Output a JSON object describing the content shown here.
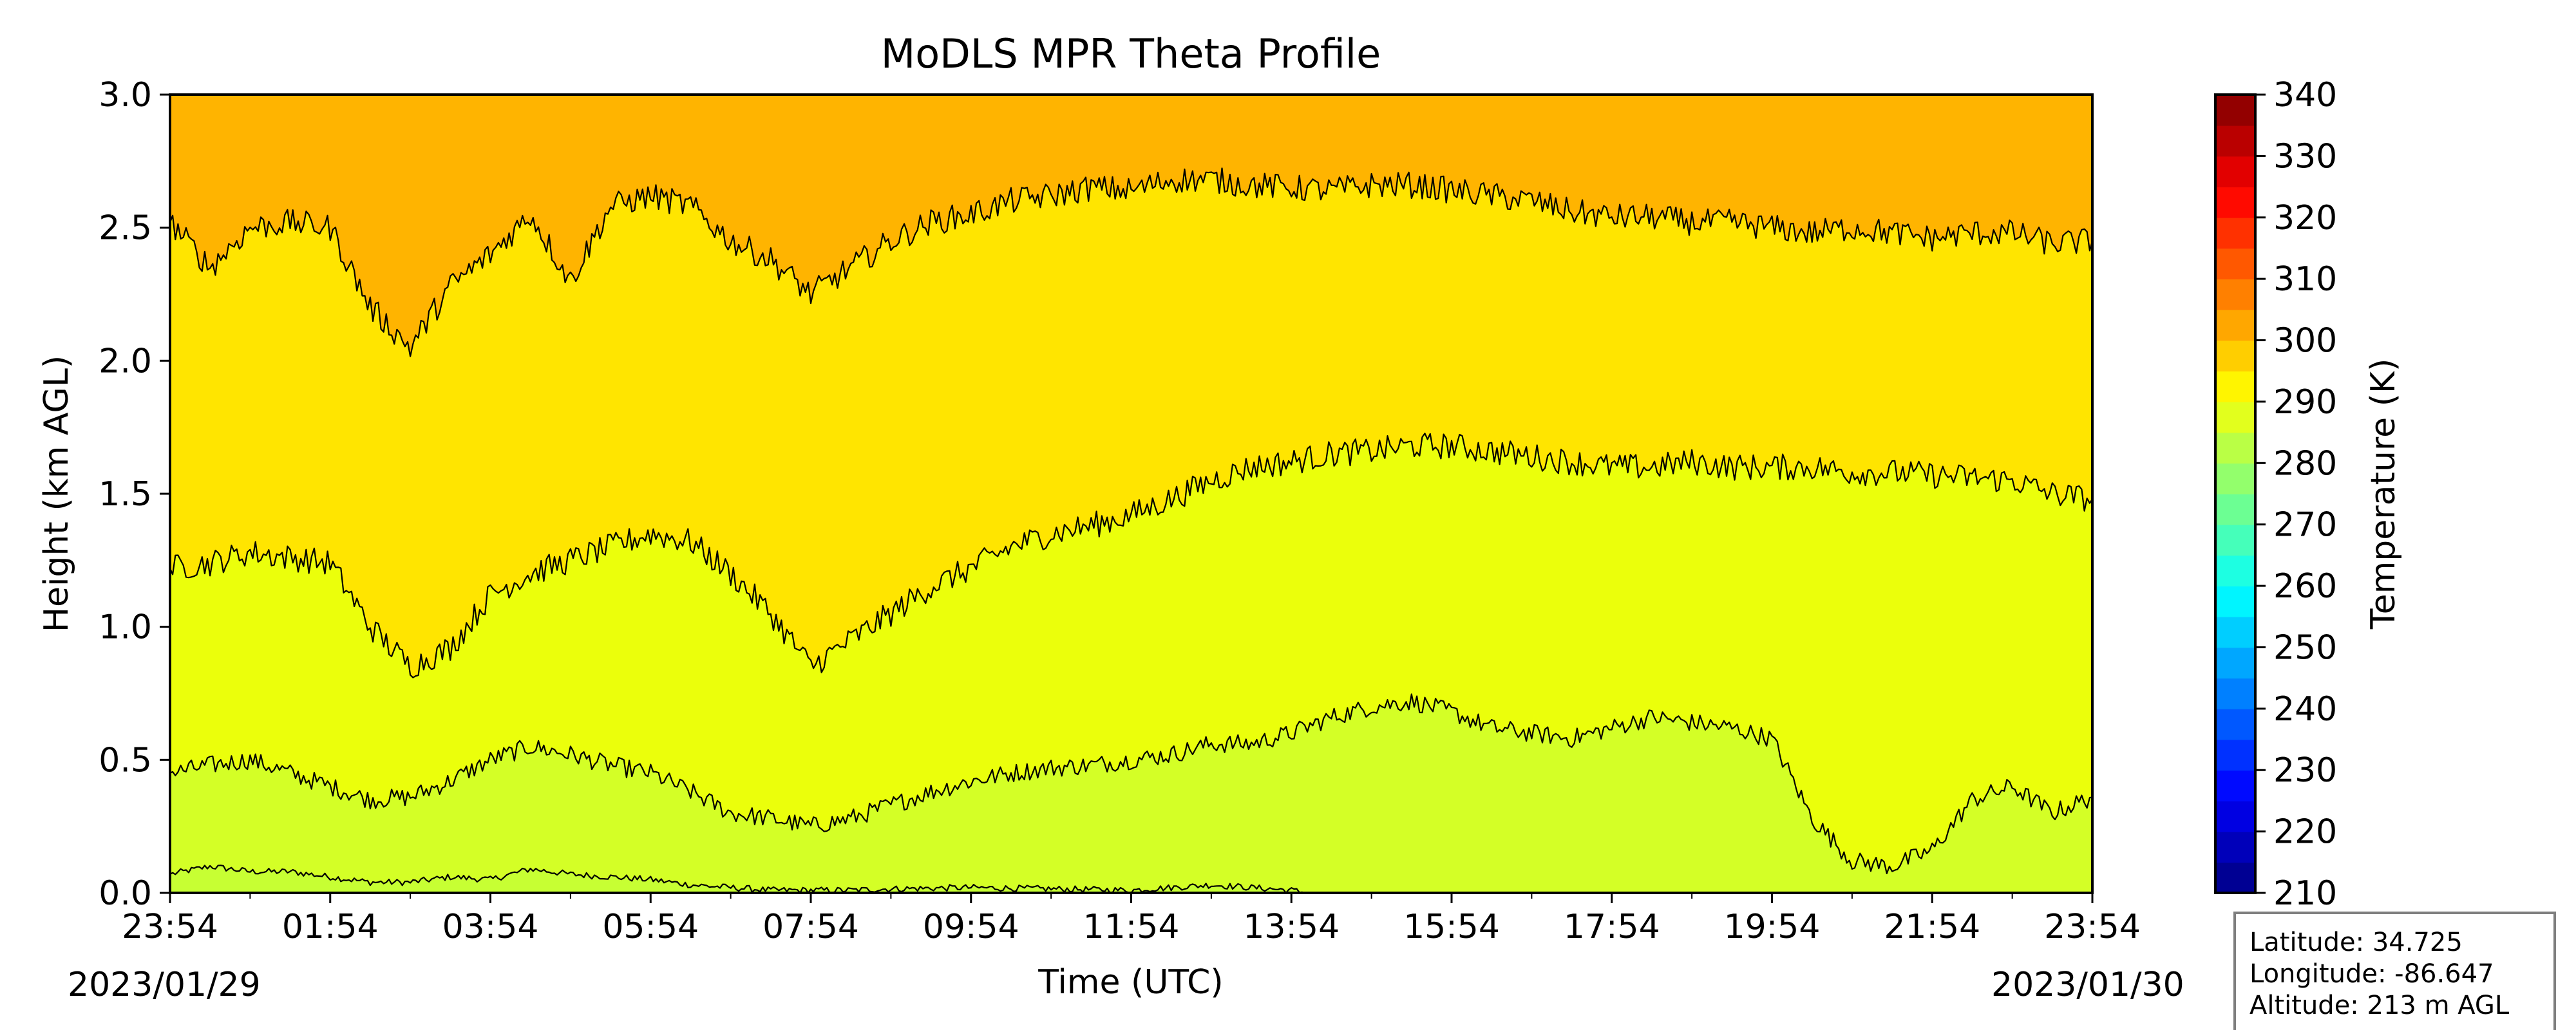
{
  "chart_data": {
    "type": "heatmap",
    "title": "MoDLS MPR Theta Profile",
    "xlabel": "Time (UTC)",
    "ylabel": "Height (km AGL)",
    "x_ticks": [
      "23:54",
      "01:54",
      "03:54",
      "05:54",
      "07:54",
      "09:54",
      "11:54",
      "13:54",
      "15:54",
      "17:54",
      "19:54",
      "21:54",
      "23:54"
    ],
    "date_start": "2023/01/29",
    "date_end": "2023/01/30",
    "xlim": [
      "2023/01/29 23:54",
      "2023/01/30 23:54"
    ],
    "ylim": [
      0,
      3
    ],
    "y_ticks": [
      "0.0",
      "0.5",
      "1.0",
      "1.5",
      "2.0",
      "2.5",
      "3.0"
    ],
    "colorbar": {
      "label": "Temperature (K)",
      "range": [
        210,
        340
      ],
      "step": 5,
      "ticks": [
        "210",
        "220",
        "230",
        "240",
        "250",
        "260",
        "270",
        "280",
        "290",
        "300",
        "310",
        "320",
        "330",
        "340"
      ]
    },
    "contour_levels_K": [
      280,
      285,
      290,
      295,
      300
    ],
    "contours": [
      {
        "level": 280,
        "x_hours": [
          0,
          0.5,
          1,
          1.5,
          2,
          2.5,
          3,
          3.5,
          4,
          4.5,
          5,
          5.5,
          6,
          6.5,
          7,
          7.5,
          8,
          8.5,
          9,
          10,
          11,
          12,
          12.5,
          13,
          13.5,
          14,
          14.2
        ],
        "height_km": [
          0.07,
          0.1,
          0.08,
          0.08,
          0.06,
          0.04,
          0.04,
          0.06,
          0.05,
          0.09,
          0.07,
          0.06,
          0.05,
          0.03,
          0.02,
          0.01,
          0.01,
          0.01,
          0.015,
          0.02,
          0.015,
          0.01,
          0.02,
          0.03,
          0.02,
          0.01,
          0.0
        ]
      },
      {
        "level": 285,
        "x_hours": [
          0,
          0.5,
          1,
          1.5,
          2,
          2.5,
          3,
          3.5,
          4,
          4.5,
          5,
          5.5,
          6,
          6.5,
          7,
          7.5,
          8,
          8.5,
          9,
          9.5,
          10,
          10.5,
          11,
          11.5,
          12,
          12.5,
          13,
          13.5,
          14,
          14.5,
          15,
          15.5,
          16,
          16.5,
          17,
          17.5,
          18,
          18.5,
          19,
          19.5,
          20,
          20.5,
          21,
          21.5,
          22,
          22.5,
          23,
          23.5,
          24
        ],
        "height_km": [
          0.45,
          0.48,
          0.5,
          0.45,
          0.4,
          0.35,
          0.36,
          0.42,
          0.5,
          0.55,
          0.52,
          0.48,
          0.45,
          0.38,
          0.3,
          0.28,
          0.25,
          0.28,
          0.33,
          0.38,
          0.42,
          0.45,
          0.47,
          0.48,
          0.5,
          0.52,
          0.56,
          0.56,
          0.6,
          0.66,
          0.7,
          0.72,
          0.68,
          0.62,
          0.6,
          0.58,
          0.62,
          0.66,
          0.64,
          0.62,
          0.58,
          0.28,
          0.12,
          0.1,
          0.16,
          0.35,
          0.4,
          0.3,
          0.36
        ]
      },
      {
        "level": 290,
        "x_hours": [
          0,
          0.5,
          1,
          1.5,
          2,
          2.5,
          3,
          3.5,
          4,
          4.5,
          5,
          5.5,
          6,
          6.5,
          7,
          7.5,
          8,
          8.5,
          9,
          9.5,
          10,
          10.5,
          11,
          11.5,
          12,
          12.5,
          13,
          13.5,
          14,
          14.5,
          15,
          15.5,
          16,
          16.5,
          17,
          17.5,
          18,
          18.5,
          19,
          19.5,
          20,
          20.5,
          21,
          21.5,
          22,
          22.5,
          23,
          23.5,
          24
        ],
        "height_km": [
          1.22,
          1.24,
          1.28,
          1.26,
          1.24,
          1.0,
          0.85,
          0.92,
          1.12,
          1.2,
          1.25,
          1.3,
          1.35,
          1.32,
          1.2,
          1.05,
          0.85,
          0.95,
          1.05,
          1.15,
          1.22,
          1.3,
          1.35,
          1.38,
          1.42,
          1.48,
          1.55,
          1.6,
          1.62,
          1.65,
          1.66,
          1.68,
          1.68,
          1.66,
          1.64,
          1.62,
          1.6,
          1.6,
          1.62,
          1.6,
          1.6,
          1.6,
          1.58,
          1.58,
          1.57,
          1.56,
          1.55,
          1.5,
          1.48
        ]
      },
      {
        "level": 295,
        "x_hours": [
          0,
          0.5,
          1,
          1.5,
          2,
          2.5,
          3,
          3.5,
          4,
          4.5,
          5,
          5.5,
          6,
          6.5,
          7,
          7.5,
          8,
          8.5,
          9,
          9.5,
          10,
          10.5,
          11,
          11.5,
          12,
          12.5,
          13,
          13.5,
          14,
          14.5,
          15,
          15.5,
          16,
          16.5,
          17,
          17.5,
          18,
          18.5,
          19,
          19.5,
          20,
          20.5,
          21,
          21.5,
          22,
          22.5,
          23,
          23.5,
          24
        ],
        "height_km": [
          2.52,
          2.35,
          2.5,
          2.52,
          2.5,
          2.2,
          2.05,
          2.28,
          2.4,
          2.55,
          2.3,
          2.58,
          2.62,
          2.58,
          2.45,
          2.38,
          2.25,
          2.35,
          2.45,
          2.52,
          2.55,
          2.6,
          2.62,
          2.65,
          2.64,
          2.68,
          2.68,
          2.66,
          2.65,
          2.64,
          2.66,
          2.66,
          2.64,
          2.62,
          2.6,
          2.56,
          2.54,
          2.54,
          2.52,
          2.52,
          2.5,
          2.48,
          2.5,
          2.48,
          2.46,
          2.48,
          2.48,
          2.44,
          2.45
        ]
      }
    ],
    "color_regions": [
      {
        "name": "280-285 K",
        "color": "#d4ff26"
      },
      {
        "name": "285-290 K",
        "color": "#ebff0b"
      },
      {
        "name": "290-295 K",
        "color": "#ffe500"
      },
      {
        "name": "295-300 K",
        "color": "#ffb400"
      }
    ]
  },
  "info_box": {
    "latitude": "Latitude: 34.725",
    "longitude": "Longitude: -86.647",
    "altitude": "Altitude: 213 m AGL"
  }
}
